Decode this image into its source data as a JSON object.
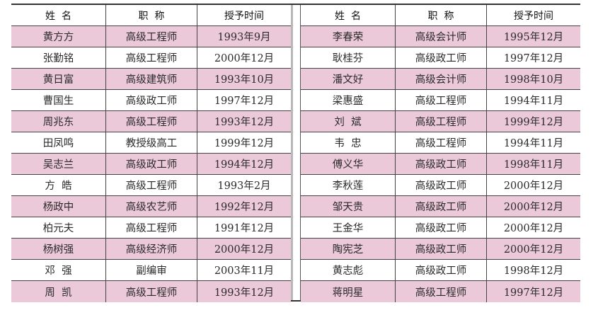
{
  "headers": [
    "姓  名",
    "职  称",
    "授予时间"
  ],
  "row_color": "#ecc9d8",
  "left": [
    [
      "黄方方",
      "高级工程师",
      "1993年9月"
    ],
    [
      "张勤铭",
      "高级工程师",
      "2000年12月"
    ],
    [
      "黄日富",
      "高级建筑师",
      "1993年10月"
    ],
    [
      "曹国生",
      "高级政工师",
      "1997年12月"
    ],
    [
      "周兆东",
      "高级工程师",
      "1993年12月"
    ],
    [
      "田凤鸣",
      "教授级高工",
      "1999年12月"
    ],
    [
      "吴志兰",
      "高级政工师",
      "1994年12月"
    ],
    [
      "方  皓",
      "高级工程师",
      "1993年2月"
    ],
    [
      "杨政中",
      "高级农艺师",
      "1992年12月"
    ],
    [
      "柏元夫",
      "高级工程师",
      "1991年12月"
    ],
    [
      "杨树强",
      "高级经济师",
      "2000年12月"
    ],
    [
      "邓  强",
      "副编审",
      "2003年11月"
    ],
    [
      "周  凯",
      "高级工程师",
      "1993年12月"
    ]
  ],
  "right": [
    [
      "李春荣",
      "高级会计师",
      "1995年12月"
    ],
    [
      "耿桂芬",
      "高级政工师",
      "1997年12月"
    ],
    [
      "潘文好",
      "高级会计师",
      "1998年10月"
    ],
    [
      "梁惠盛",
      "高级工程师",
      "1994年11月"
    ],
    [
      "刘  斌",
      "高级工程师",
      "1999年12月"
    ],
    [
      "韦  忠",
      "高级工程师",
      "1994年11月"
    ],
    [
      "傅义华",
      "高级政工师",
      "1998年11月"
    ],
    [
      "李秋莲",
      "高级政工师",
      "2000年12月"
    ],
    [
      "邹天贵",
      "高级政工师",
      "2000年12月"
    ],
    [
      "王金华",
      "高级政工师",
      "2000年12月"
    ],
    [
      "陶宪芝",
      "高级政工师",
      "2000年12月"
    ],
    [
      "黄志彪",
      "高级政工师",
      "1998年12月"
    ],
    [
      "蒋明星",
      "高级工程师",
      "1997年12月"
    ]
  ]
}
